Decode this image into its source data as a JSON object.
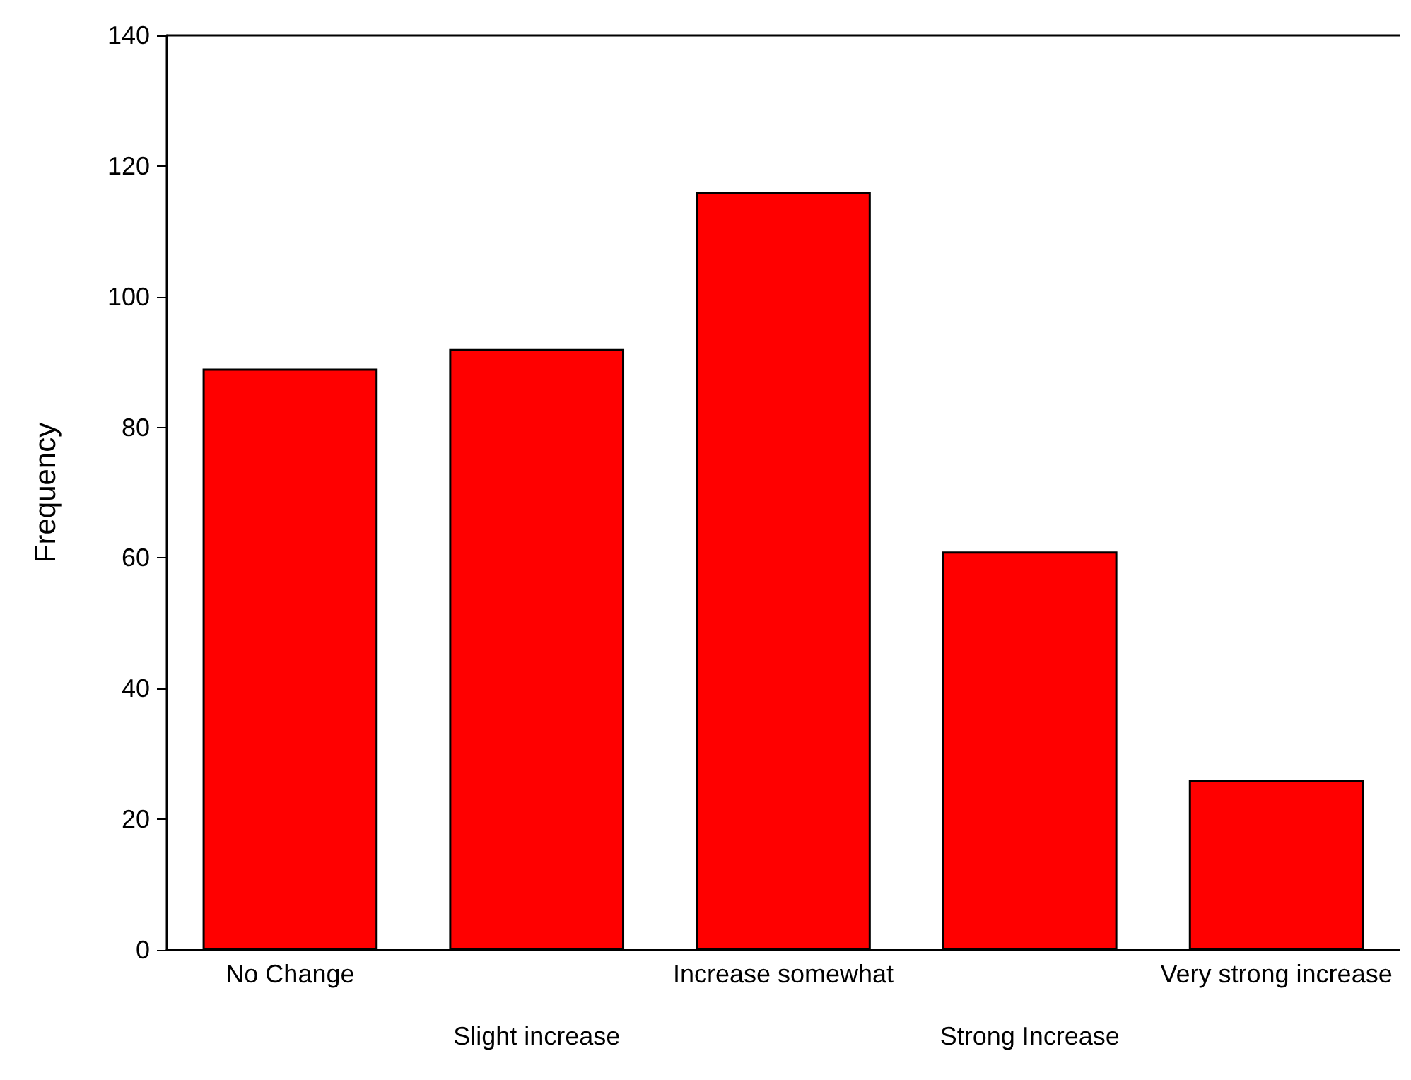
{
  "chart_data": {
    "type": "bar",
    "ylabel": "Frequency",
    "categories": [
      "No Change",
      "Slight increase",
      "Increase somewhat",
      "Strong Increase",
      "Very strong increase"
    ],
    "values": [
      89,
      92,
      116,
      61,
      26
    ],
    "color": "#ff0000",
    "ylim": [
      0,
      140
    ],
    "yticks": [
      0,
      20,
      40,
      60,
      80,
      100,
      120,
      140
    ],
    "grid": false
  }
}
